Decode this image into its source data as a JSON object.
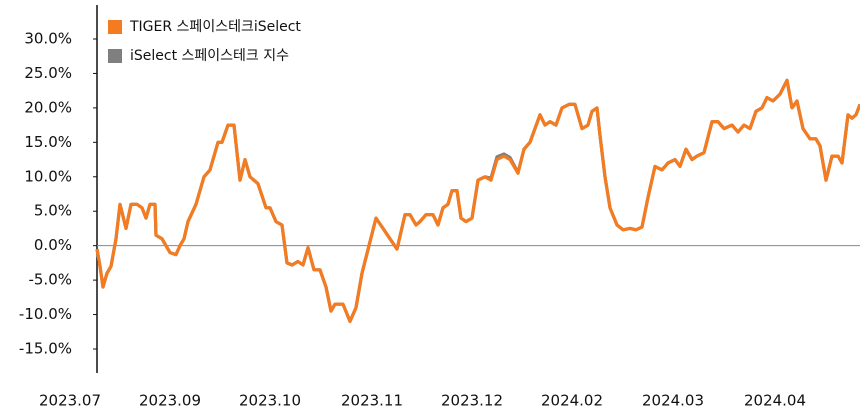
{
  "chart_data": {
    "type": "line",
    "x": [
      2.7,
      3.0,
      3.3,
      3.7,
      4.1,
      4.6,
      5.0,
      5.6,
      6.1,
      6.7,
      7.2,
      7.6,
      8.0,
      8.5,
      8.6,
      9.2,
      10.0,
      10.6,
      11.0,
      11.4,
      11.8,
      12.6,
      13.4,
      14.0,
      14.8,
      15.2,
      15.8,
      16.4,
      17.0,
      17.5,
      18.0,
      18.8,
      19.6,
      20.0,
      20.6,
      21.2,
      21.7,
      22.2,
      22.8,
      23.3,
      23.8,
      24.4,
      25.0,
      25.6,
      26.1,
      26.5,
      27.3,
      28.0,
      28.6,
      29.2,
      29.9,
      30.6,
      31.3,
      32.0,
      32.7,
      33.5,
      34.0,
      34.6,
      35.0,
      35.6,
      36.3,
      36.8,
      37.3,
      37.8,
      38.2,
      38.7,
      39.1,
      39.6,
      40.2,
      40.8,
      41.5,
      42.1,
      42.7,
      43.4,
      44.0,
      44.8,
      45.4,
      46.0,
      47.0,
      47.5,
      48.0,
      48.6,
      49.2,
      49.9,
      50.5,
      51.2,
      51.8,
      52.2,
      52.7,
      53.0,
      53.5,
      54.0,
      54.7,
      55.3,
      56.0,
      56.6,
      57.2,
      57.8,
      58.5,
      59.2,
      59.8,
      60.5,
      61.0,
      61.6,
      62.2,
      62.7,
      63.4,
      64.2,
      64.8,
      65.4,
      66.2,
      66.8,
      67.4,
      68.0,
      68.6,
      69.2,
      69.7,
      70.3,
      71.0,
      71.7,
      72.2,
      72.7,
      73.3,
      74.0,
      74.6,
      75.0,
      75.6,
      76.2,
      76.8,
      77.2,
      77.8,
      78.2,
      78.6,
      79.0
    ],
    "series": [
      {
        "name": "iSelect 스페이스테크 지수",
        "color": "#7f7f7f",
        "values": [
          -0.5,
          -3,
          -6,
          -4,
          -3,
          1,
          6,
          2.5,
          6,
          6,
          5.5,
          4,
          6,
          6,
          1.5,
          1,
          -1,
          -1.3,
          0,
          1,
          3.5,
          6,
          10,
          11,
          15,
          15,
          17.5,
          17.5,
          9.5,
          12.5,
          10,
          9,
          5.5,
          5.5,
          3.5,
          3,
          -2.5,
          -2.8,
          -2.3,
          -2.8,
          -0.3,
          -3.5,
          -3.5,
          -6,
          -9.5,
          -8.5,
          -8.5,
          -11,
          -9,
          -4,
          0,
          4,
          2.5,
          1,
          -0.5,
          4.5,
          4.5,
          3,
          3.5,
          4.5,
          4.5,
          3,
          5.5,
          6,
          8,
          8,
          4,
          3.5,
          4,
          9.5,
          10,
          9.8,
          12.9,
          13.3,
          12.8,
          10.6,
          14,
          15,
          19,
          17.5,
          18,
          17.5,
          20,
          20.5,
          20.5,
          17,
          17.5,
          19.5,
          20,
          16,
          10,
          5.5,
          3,
          2.3,
          2.5,
          2.3,
          2.7,
          7,
          11.5,
          11,
          12,
          12.5,
          11.5,
          14,
          12.5,
          13,
          13.5,
          18,
          18,
          17,
          17.5,
          16.5,
          17.5,
          17,
          19.5,
          20,
          21.5,
          21,
          22,
          24,
          20,
          21,
          17,
          15.5,
          15.5,
          14.5,
          9.5,
          13,
          13,
          12,
          19,
          18.5,
          19,
          20.5
        ]
      },
      {
        "name": "TIGER 스페이스테크iSelect",
        "color": "#f47b20",
        "values": [
          -0.5,
          -3,
          -6,
          -4,
          -3,
          1,
          6,
          2.5,
          6,
          6,
          5.5,
          4,
          6,
          6,
          1.5,
          1,
          -1,
          -1.3,
          0,
          1,
          3.5,
          6,
          10,
          11,
          15,
          15,
          17.5,
          17.5,
          9.5,
          12.5,
          10,
          9,
          5.5,
          5.5,
          3.5,
          3,
          -2.5,
          -2.8,
          -2.3,
          -2.8,
          -0.3,
          -3.5,
          -3.5,
          -6,
          -9.5,
          -8.5,
          -8.5,
          -11,
          -9,
          -4,
          0,
          4,
          2.5,
          1,
          -0.5,
          4.5,
          4.5,
          3,
          3.5,
          4.5,
          4.5,
          3,
          5.5,
          6,
          8,
          8,
          4,
          3.5,
          4,
          9.5,
          10,
          9.5,
          12.5,
          13,
          12.5,
          10.5,
          14,
          15,
          19,
          17.5,
          18,
          17.5,
          20,
          20.5,
          20.5,
          17,
          17.5,
          19.5,
          20,
          16,
          10,
          5.5,
          3,
          2.3,
          2.5,
          2.3,
          2.7,
          7,
          11.5,
          11,
          12,
          12.5,
          11.5,
          14,
          12.5,
          13,
          13.5,
          18,
          18,
          17,
          17.5,
          16.5,
          17.5,
          17,
          19.5,
          20,
          21.5,
          21,
          22,
          24,
          20,
          21,
          17,
          15.5,
          15.5,
          14.5,
          9.5,
          13,
          13,
          12,
          19,
          18.5,
          19,
          20.5
        ]
      }
    ],
    "xlim": [
      0,
      79
    ],
    "xticks": [
      {
        "value": 0,
        "label": "2023.07"
      },
      {
        "value": 10,
        "label": "2023.09"
      },
      {
        "value": 20,
        "label": "2023.10"
      },
      {
        "value": 30.2,
        "label": "2023.11"
      },
      {
        "value": 40.2,
        "label": "2023.12"
      },
      {
        "value": 50.2,
        "label": "2024.02"
      },
      {
        "value": 60.3,
        "label": "2024.03"
      },
      {
        "value": 70.5,
        "label": "2024.04"
      }
    ],
    "ylim": [
      -15,
      30
    ],
    "yticks": [
      {
        "value": 30,
        "label": "30.0%"
      },
      {
        "value": 25,
        "label": "25.0%"
      },
      {
        "value": 20,
        "label": "20.0%"
      },
      {
        "value": 15,
        "label": "15.0%"
      },
      {
        "value": 10,
        "label": "10.0%"
      },
      {
        "value": 5,
        "label": "5.0%"
      },
      {
        "value": 0,
        "label": "0.0%"
      },
      {
        "value": -5,
        "label": "-5.0%"
      },
      {
        "value": -10,
        "label": "-10.0%"
      },
      {
        "value": -15,
        "label": "-15.0%"
      }
    ],
    "legend": "upper left",
    "grid": false
  }
}
